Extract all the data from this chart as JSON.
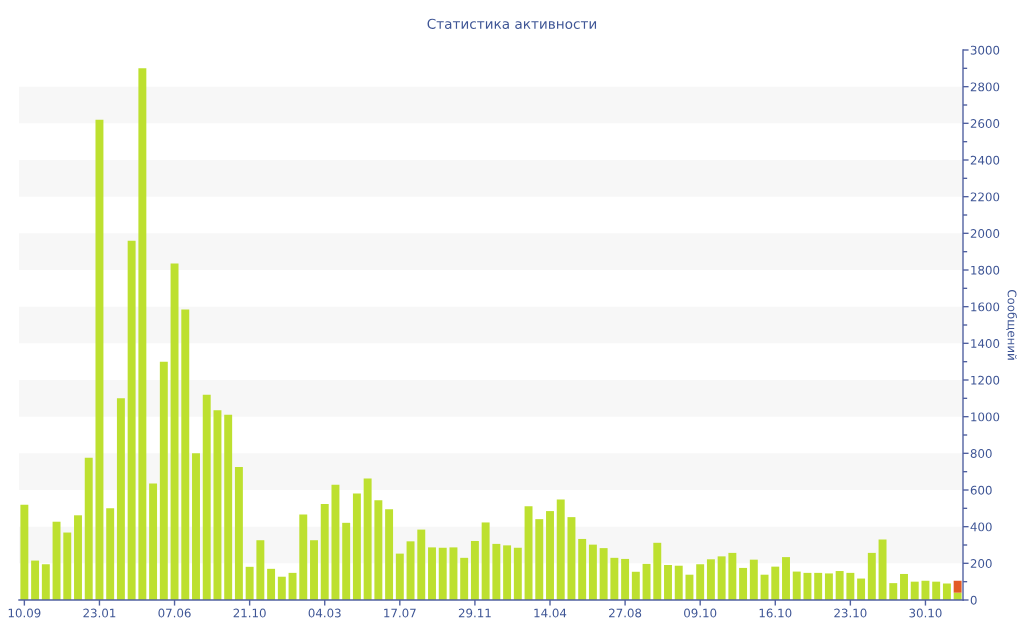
{
  "chart_data": {
    "type": "bar",
    "title": "Статистика активности",
    "ylabel": "Сообщений",
    "categories": [
      "10.09",
      null,
      null,
      null,
      null,
      null,
      null,
      "23.01",
      null,
      null,
      null,
      null,
      null,
      null,
      "07.06",
      null,
      null,
      null,
      null,
      null,
      null,
      "21.10",
      null,
      null,
      null,
      null,
      null,
      null,
      "04.03",
      null,
      null,
      null,
      null,
      null,
      null,
      "17.07",
      null,
      null,
      null,
      null,
      null,
      null,
      "29.11",
      null,
      null,
      null,
      null,
      null,
      null,
      "14.04",
      null,
      null,
      null,
      null,
      null,
      null,
      "27.08",
      null,
      null,
      null,
      null,
      null,
      null,
      "09.10",
      null,
      null,
      null,
      null,
      null,
      null,
      "16.10",
      null,
      null,
      null,
      null,
      null,
      null,
      "23.10",
      null,
      null,
      null,
      null,
      null,
      null,
      "30.10",
      null,
      null,
      null
    ],
    "stacked": true,
    "series": [
      {
        "color": "#bde02f",
        "values": [
          520,
          215,
          195,
          427,
          368,
          462,
          776,
          2620,
          500,
          1100,
          1960,
          2900,
          635,
          1300,
          1835,
          1585,
          800,
          1120,
          1035,
          1010,
          725,
          181,
          326,
          170,
          127,
          148,
          466,
          326,
          524,
          628,
          421,
          581,
          663,
          544,
          495,
          253,
          320,
          384,
          287,
          285,
          287,
          230,
          322,
          423,
          306,
          298,
          285,
          511,
          441,
          485,
          548,
          452,
          333,
          302,
          283,
          230,
          224,
          154,
          197,
          312,
          191,
          187,
          138,
          195,
          222,
          238,
          257,
          175,
          220,
          138,
          182,
          234,
          155,
          148,
          148,
          145,
          158,
          148,
          117,
          257,
          330,
          92,
          142,
          100,
          105,
          100,
          90,
          40
        ]
      },
      {
        "color": "#e35b24",
        "values": [
          null,
          null,
          null,
          null,
          null,
          null,
          null,
          null,
          null,
          null,
          null,
          null,
          null,
          null,
          null,
          null,
          null,
          null,
          null,
          null,
          null,
          null,
          null,
          null,
          null,
          null,
          null,
          null,
          null,
          null,
          null,
          null,
          null,
          null,
          null,
          null,
          null,
          null,
          null,
          null,
          null,
          null,
          null,
          null,
          null,
          null,
          null,
          null,
          null,
          null,
          null,
          null,
          null,
          null,
          null,
          null,
          null,
          null,
          null,
          null,
          null,
          null,
          null,
          null,
          null,
          null,
          null,
          null,
          null,
          null,
          null,
          null,
          null,
          null,
          null,
          null,
          null,
          null,
          null,
          null,
          null,
          null,
          null,
          null,
          null,
          null,
          null,
          65
        ]
      }
    ],
    "ylim": [
      0,
      3000
    ],
    "yticks": [
      0,
      {
        "value": 100,
        "label": null
      },
      200,
      {
        "value": 300,
        "label": null
      },
      400,
      {
        "value": 500,
        "label": null
      },
      600,
      {
        "value": 700,
        "label": null
      },
      800,
      {
        "value": 900,
        "label": null
      },
      1000,
      {
        "value": 1100,
        "label": null
      },
      1200,
      {
        "value": 1300,
        "label": null
      },
      1400,
      {
        "value": 1500,
        "label": null
      },
      1600,
      {
        "value": 1700,
        "label": null
      },
      1800,
      {
        "value": 1900,
        "label": null
      },
      2000,
      {
        "value": 2100,
        "label": null
      },
      2200,
      {
        "value": 2300,
        "label": null
      },
      2400,
      {
        "value": 2500,
        "label": null
      },
      2600,
      {
        "value": 2700,
        "label": null
      },
      2800,
      {
        "value": 2900,
        "label": null
      },
      3000
    ],
    "bands": [
      {
        "axis": "y",
        "from": 200,
        "to": 400,
        "color": "#f7f7f7"
      },
      {
        "axis": "y",
        "from": 600,
        "to": 800,
        "color": "#f7f7f7"
      },
      {
        "axis": "y",
        "from": 1000,
        "to": 1200,
        "color": "#f7f7f7"
      },
      {
        "axis": "y",
        "from": 1400,
        "to": 1600,
        "color": "#f7f7f7"
      },
      {
        "axis": "y",
        "from": 1800,
        "to": 2000,
        "color": "#f7f7f7"
      },
      {
        "axis": "y",
        "from": 2200,
        "to": 2400,
        "color": "#f7f7f7"
      },
      {
        "axis": "y",
        "from": 2600,
        "to": 2800,
        "color": "#f7f7f7"
      }
    ]
  }
}
